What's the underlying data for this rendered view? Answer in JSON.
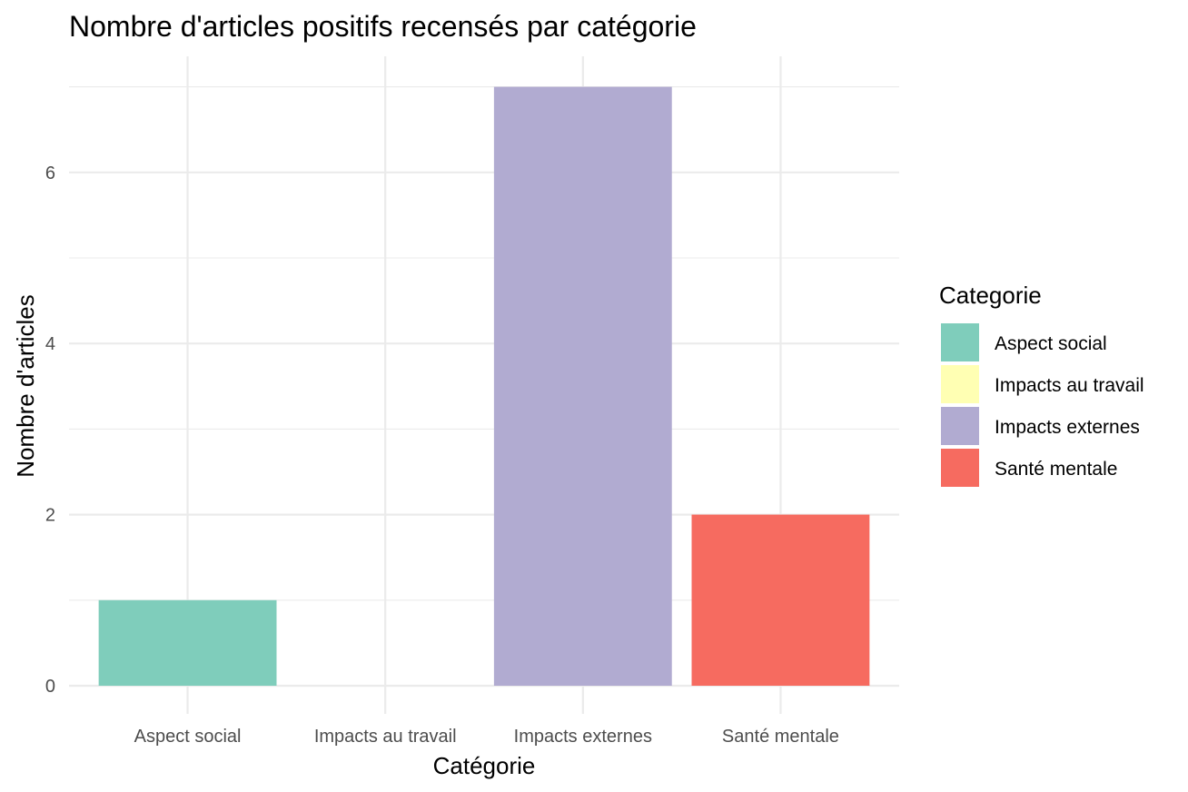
{
  "chart_data": {
    "type": "bar",
    "title": "Nombre d'articles positifs recensés par catégorie",
    "xlabel": "Catégorie",
    "ylabel": "Nombre d'articles",
    "categories": [
      "Aspect social",
      "Impacts au travail",
      "Impacts externes",
      "Santé mentale"
    ],
    "values": [
      1,
      0,
      7,
      2
    ],
    "colors": [
      "#7fcdbb",
      "#ffffb3",
      "#b1abd1",
      "#f66b60"
    ],
    "ylim": [
      0,
      7
    ],
    "yticks": [
      0,
      2,
      4,
      6
    ],
    "grid": true,
    "legend": {
      "title": "Categorie",
      "placement": "right",
      "entries": [
        "Aspect social",
        "Impacts au travail",
        "Impacts externes",
        "Santé mentale"
      ]
    }
  }
}
